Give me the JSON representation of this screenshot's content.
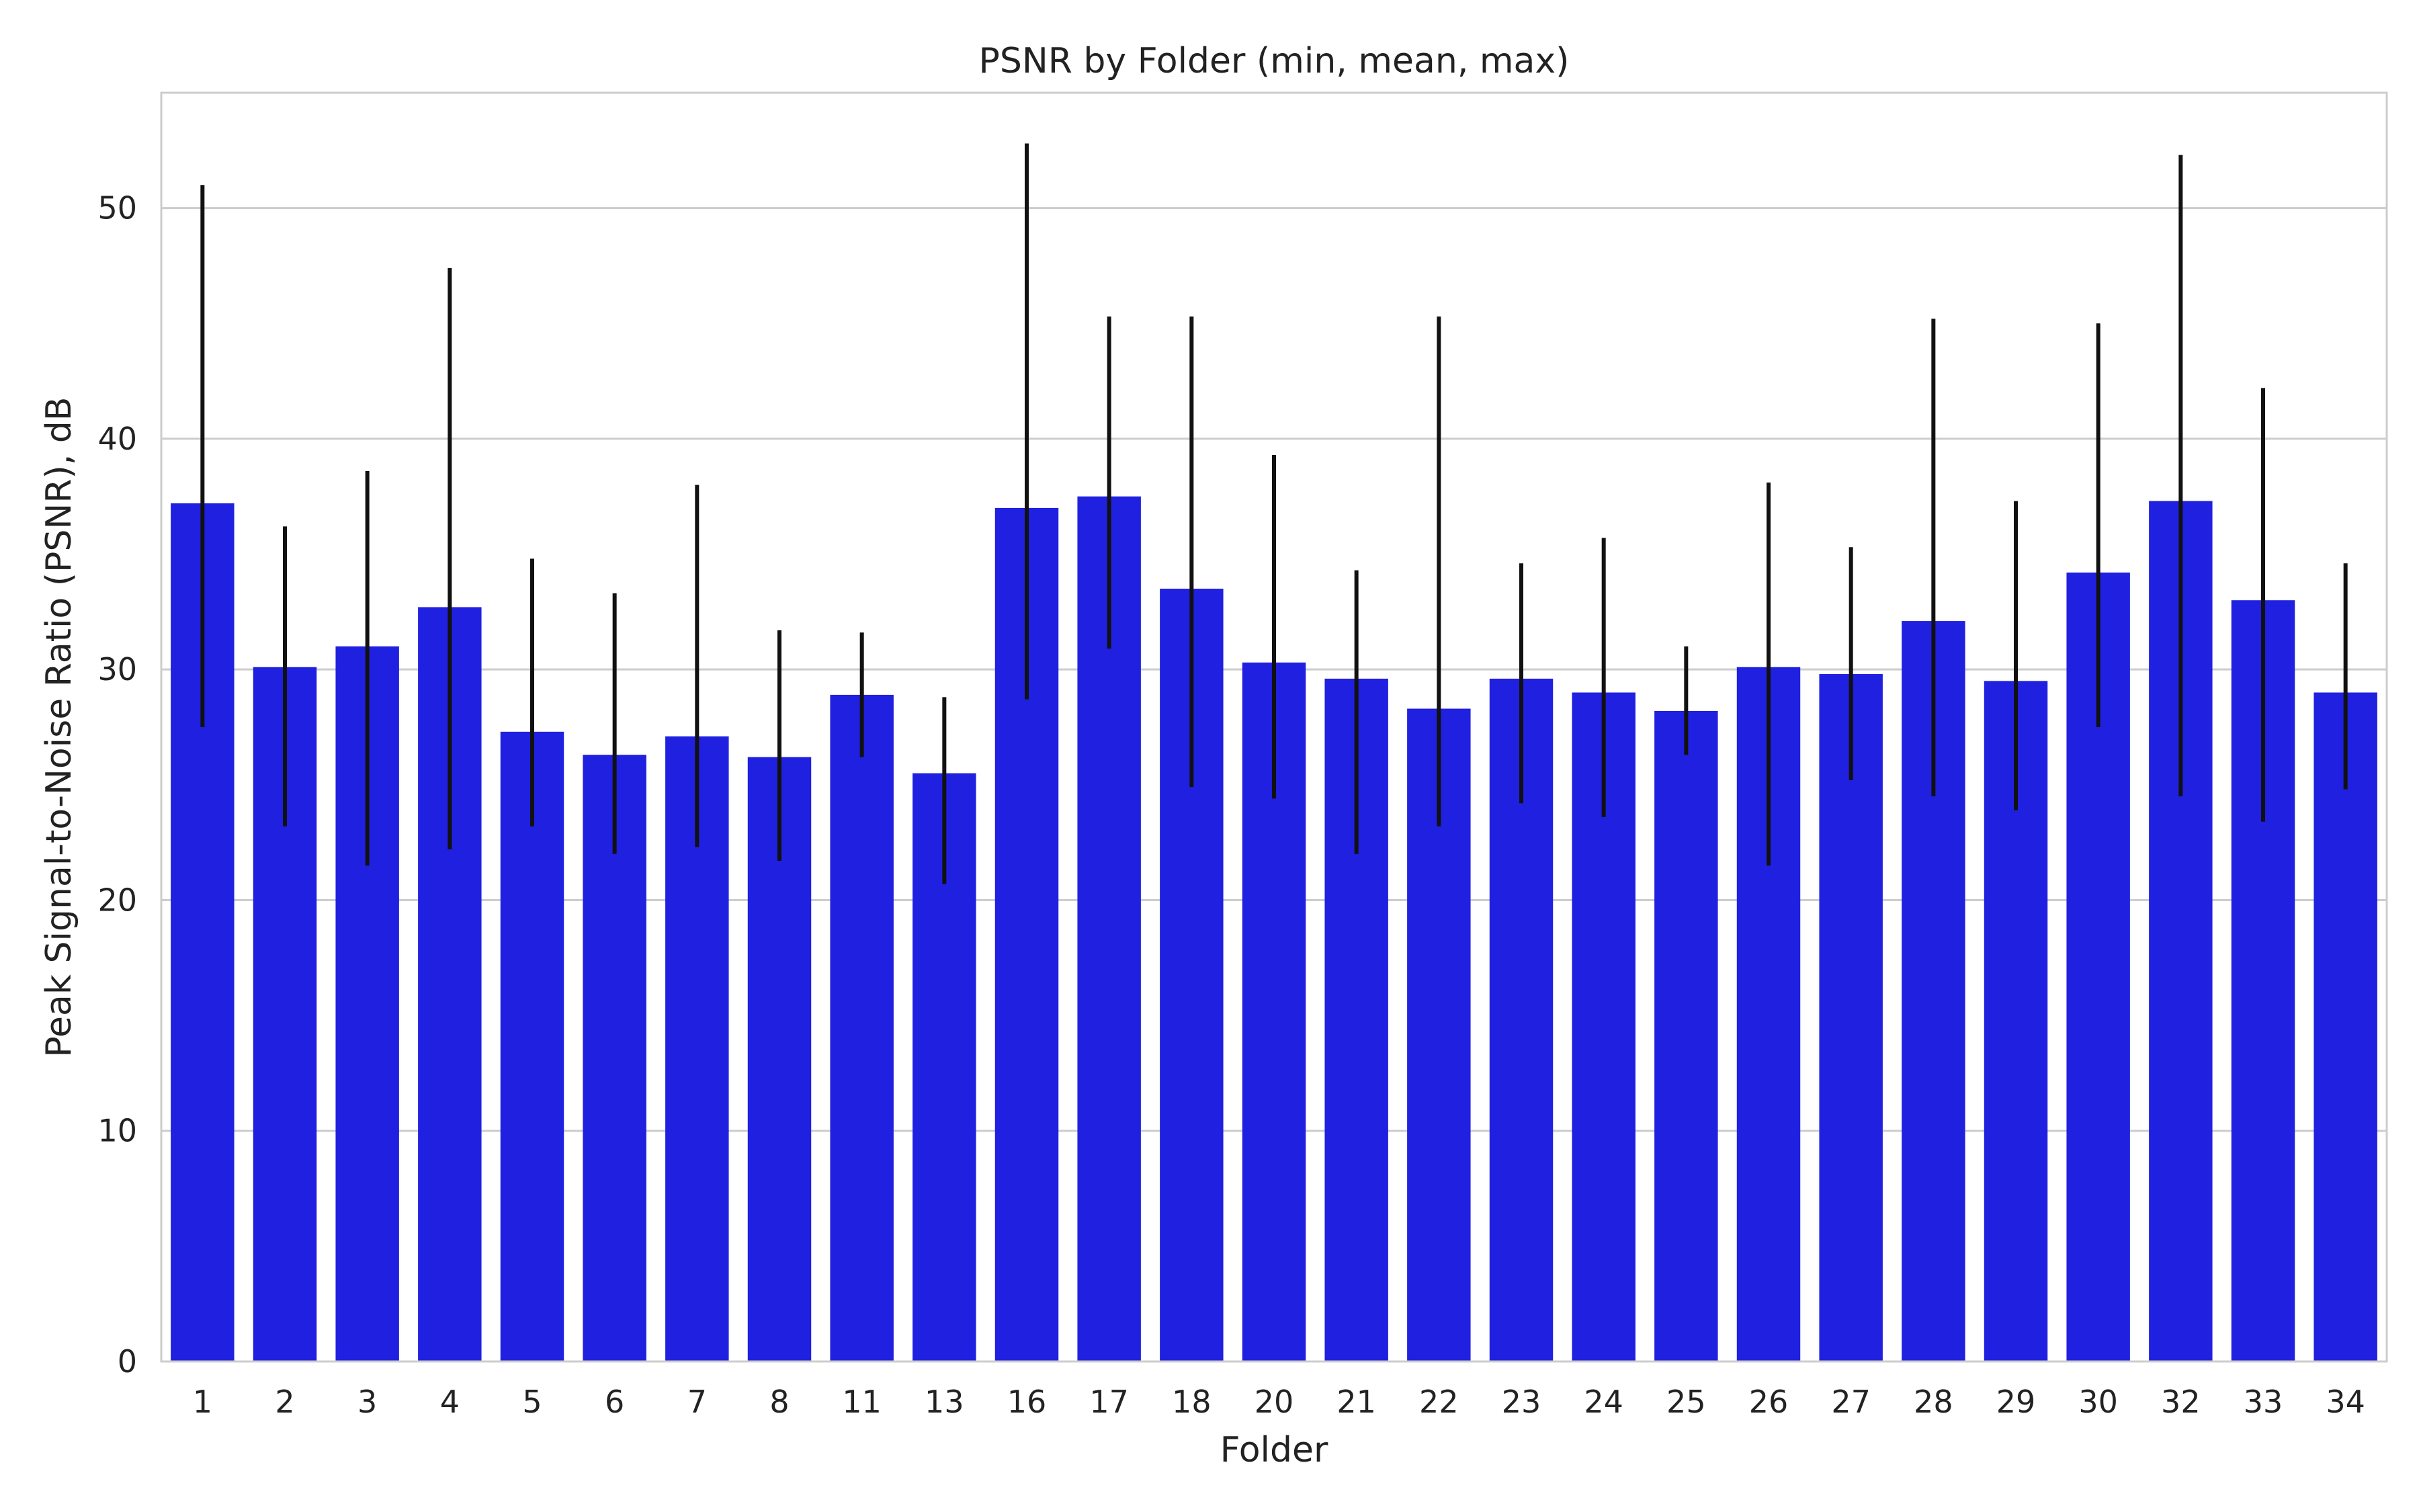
{
  "chart_data": {
    "type": "bar",
    "title": "PSNR by Folder (min, mean, max)",
    "xlabel": "Folder",
    "ylabel": "Peak Signal-to-Noise Ratio (PSNR), dB",
    "ylim": [
      0,
      55
    ],
    "yticks": [
      0,
      10,
      20,
      30,
      40,
      50
    ],
    "grid": true,
    "bar_color": "#2020e0",
    "error_color": "#111111",
    "categories": [
      "1",
      "2",
      "3",
      "4",
      "5",
      "6",
      "7",
      "8",
      "11",
      "13",
      "16",
      "17",
      "18",
      "20",
      "21",
      "22",
      "23",
      "24",
      "25",
      "26",
      "27",
      "28",
      "29",
      "30",
      "32",
      "33",
      "34"
    ],
    "values": [
      37.2,
      30.1,
      31.0,
      32.7,
      27.3,
      26.3,
      27.1,
      26.2,
      28.9,
      25.5,
      37.0,
      37.5,
      33.5,
      30.3,
      29.6,
      28.3,
      29.6,
      29.0,
      28.2,
      30.1,
      29.8,
      32.1,
      29.5,
      34.2,
      37.3,
      33.0,
      29.0
    ],
    "min": [
      27.5,
      23.2,
      21.5,
      22.2,
      23.2,
      22.0,
      22.3,
      21.7,
      26.2,
      20.7,
      28.7,
      30.9,
      24.9,
      24.4,
      22.0,
      23.2,
      24.2,
      23.6,
      26.3,
      21.5,
      25.2,
      24.5,
      23.9,
      27.5,
      24.5,
      23.4,
      24.8
    ],
    "max": [
      51.0,
      36.2,
      38.6,
      47.4,
      34.8,
      33.3,
      38.0,
      31.7,
      31.6,
      28.8,
      52.8,
      45.3,
      45.3,
      39.3,
      34.3,
      45.3,
      34.6,
      35.7,
      31.0,
      38.1,
      35.3,
      45.2,
      37.3,
      45.0,
      52.3,
      42.2,
      34.6
    ]
  }
}
